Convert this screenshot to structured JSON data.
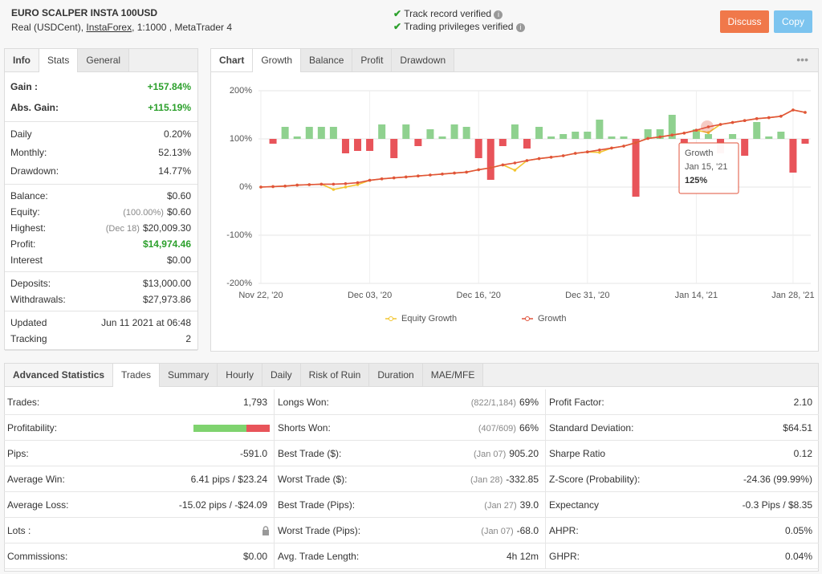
{
  "header": {
    "title": "EURO SCALPER INSTA 100USD",
    "account": "Real (USDCent),",
    "broker": "InstaForex",
    "details": ", 1:1000 , MetaTrader 4",
    "verified": [
      "Track record verified",
      "Trading privileges verified"
    ],
    "buttons": [
      "Discuss",
      "Copy"
    ]
  },
  "info_panel": {
    "tabs": [
      "Info",
      "Stats",
      "General"
    ],
    "groups": [
      [
        {
          "label": "Gain :",
          "value": "+157.84%",
          "color": "#2ca02c"
        },
        {
          "label": "Abs. Gain:",
          "value": "+115.19%",
          "color": "#2ca02c"
        }
      ],
      [
        {
          "label": "Daily",
          "value": "0.20%"
        },
        {
          "label": "Monthly:",
          "value": "52.13%"
        },
        {
          "label": "Drawdown:",
          "value": "14.77%"
        }
      ],
      [
        {
          "label": "Balance:",
          "value": "$0.60"
        },
        {
          "label": "Equity:",
          "note": "(100.00%)",
          "value": "$0.60"
        },
        {
          "label": "Highest:",
          "note": "(Dec 18)",
          "value": "$20,009.30"
        },
        {
          "label": "Profit:",
          "value": "$14,974.46",
          "color": "#2ca02c"
        },
        {
          "label": "Interest",
          "value": "$0.00"
        }
      ],
      [
        {
          "label": "Deposits:",
          "value": "$13,000.00"
        },
        {
          "label": "Withdrawals:",
          "value": "$27,973.86"
        }
      ],
      [
        {
          "label": "Updated",
          "value": "Jun 11 2021 at 06:48"
        },
        {
          "label": "Tracking",
          "value": "2"
        }
      ]
    ]
  },
  "chart_panel": {
    "tabs": [
      "Chart",
      "Growth",
      "Balance",
      "Profit",
      "Drawdown"
    ],
    "chart": {
      "type": "line",
      "categories": [
        "Nov 22, '20",
        null,
        null,
        null,
        null,
        null,
        null,
        null,
        null,
        "Dec 03, '20",
        null,
        null,
        null,
        null,
        null,
        null,
        null,
        null,
        "Dec 16, '20",
        null,
        null,
        null,
        null,
        null,
        null,
        null,
        null,
        "Dec 31, '20",
        null,
        null,
        null,
        null,
        null,
        null,
        null,
        null,
        "Jan 14, '21",
        null,
        null,
        null,
        null,
        null,
        null,
        null,
        "Jan 28, '21",
        null
      ],
      "series": [
        {
          "name": "Equity Growth",
          "color": "#f2c530",
          "values": [
            0,
            1,
            2,
            4,
            5,
            6,
            -5,
            0,
            5,
            14,
            17,
            19,
            21,
            23,
            25,
            27,
            29,
            31,
            36,
            40,
            46,
            35,
            55,
            59,
            62,
            65,
            70,
            73,
            72,
            81,
            85,
            92,
            101,
            104,
            108,
            112,
            118,
            113,
            130,
            134,
            138,
            142,
            144,
            147,
            160,
            155
          ]
        },
        {
          "name": "Growth",
          "color": "#e0533b",
          "values": [
            0,
            1,
            2,
            4,
            5,
            6,
            6,
            7,
            9,
            14,
            17,
            19,
            21,
            23,
            25,
            27,
            29,
            31,
            36,
            40,
            46,
            50,
            55,
            59,
            62,
            65,
            70,
            73,
            77,
            81,
            85,
            92,
            101,
            104,
            108,
            112,
            118,
            125,
            130,
            134,
            138,
            142,
            144,
            147,
            160,
            155
          ]
        },
        {
          "type": "bar",
          "axis": "y2",
          "color": "#8fd18f",
          "negative_color": "#e8545a",
          "values": [
            0,
            -0.1,
            0.25,
            0.05,
            0.25,
            0.25,
            0.25,
            -0.3,
            -0.25,
            -0.25,
            0.3,
            -0.4,
            0.3,
            -0.15,
            0.2,
            0.05,
            0.3,
            0.25,
            -0.4,
            -0.85,
            -0.15,
            0.3,
            -0.2,
            0.25,
            0.05,
            0.1,
            0.15,
            0.15,
            0.4,
            0.05,
            0.05,
            -1.2,
            0.2,
            0.2,
            0.5,
            -0.1,
            0.2,
            0.1,
            -0.3,
            0.1,
            -0.35,
            0.35,
            0.05,
            0.15,
            -0.7,
            -0.1
          ]
        }
      ],
      "ylim": [
        -200,
        200
      ],
      "yticks": [
        {
          "value": -200,
          "label": "-200%"
        },
        {
          "value": -100,
          "label": "-100%"
        },
        {
          "value": 0,
          "label": "0%"
        },
        {
          "value": 100,
          "label": "100%"
        },
        {
          "value": 200,
          "label": "200%"
        }
      ],
      "y2lim": [
        -3,
        1
      ],
      "grid": true,
      "tooltip": {
        "title": "Growth",
        "date": "Jan 15, '21",
        "value": 125,
        "label": "125%"
      }
    }
  },
  "advanced": {
    "title": "Advanced Statistics",
    "tabs": [
      "Trades",
      "Summary",
      "Hourly",
      "Daily",
      "Risk of Ruin",
      "Duration",
      "MAE/MFE"
    ],
    "columns": [
      [
        {
          "label": "Trades:",
          "value": "1,793"
        },
        {
          "label": "Profitability:"
        },
        {
          "label": "Pips:",
          "value": "-591.0"
        },
        {
          "label": "Average Win:",
          "value": "6.41 pips / $23.24"
        },
        {
          "label": "Average Loss:",
          "value": "-15.02 pips / -$24.09"
        },
        {
          "label": "Lots :"
        },
        {
          "label": "Commissions:",
          "value": "$0.00"
        }
      ],
      [
        {
          "label": "Longs Won:",
          "note": "(822/1,184)",
          "value": "69%"
        },
        {
          "label": "Shorts Won:",
          "note": "(407/609)",
          "value": "66%"
        },
        {
          "label": "Best Trade ($):",
          "note": "(Jan 07)",
          "value": "905.20"
        },
        {
          "label": "Worst Trade ($):",
          "note": "(Jan 28)",
          "value": "-332.85"
        },
        {
          "label": "Best Trade (Pips):",
          "note": "(Jan 27)",
          "value": "39.0"
        },
        {
          "label": "Worst Trade (Pips):",
          "note": "(Jan 07)",
          "value": "-68.0"
        },
        {
          "label": "Avg. Trade Length:",
          "value": "4h 12m"
        }
      ],
      [
        {
          "label": "Profit Factor:",
          "value": "2.10"
        },
        {
          "label": "Standard Deviation:",
          "value": "$64.51"
        },
        {
          "label": "Sharpe Ratio",
          "value": "0.12"
        },
        {
          "label": "Z-Score (Probability):",
          "value": "-24.36 (99.99%)"
        },
        {
          "label": "Expectancy",
          "value": "-0.3 Pips / $8.35"
        },
        {
          "label": "AHPR:",
          "value": "0.05%"
        },
        {
          "label": "GHPR:",
          "value": "0.04%"
        }
      ]
    ]
  }
}
